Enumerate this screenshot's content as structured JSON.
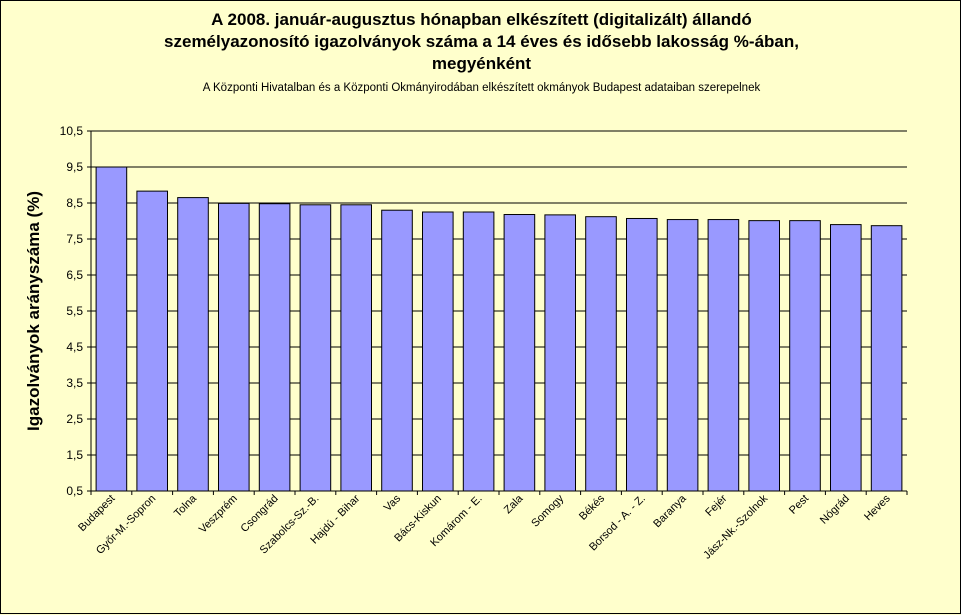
{
  "chart_data": {
    "type": "bar",
    "title_lines": [
      "A 2008. január-augusztus hónapban elkészített (digitalizált) állandó",
      "személyazonosító igazolványok száma a 14 éves és idősebb lakosság %-ában,",
      "megyénként"
    ],
    "subtitle": "A Központi Hivatalban és a Központi Okmányirodában elkészített okmányok Budapest adataiban szerepelnek",
    "ylabel": "Igazolványok arányszáma (%)",
    "xlabel": "",
    "ylim": [
      0.5,
      10.5
    ],
    "yticks": [
      "0,5",
      "1,5",
      "2,5",
      "3,5",
      "4,5",
      "5,5",
      "6,5",
      "7,5",
      "8,5",
      "9,5",
      "10,5"
    ],
    "grid": true,
    "categories": [
      "Budapest",
      "Győr-M.-Sopron",
      "Tolna",
      "Veszprém",
      "Csongrád",
      "Szabolcs-Sz.-B.",
      "Hajdú - Bihar",
      "Vas",
      "Bács-Kiskun",
      "Komárom - E.",
      "Zala",
      "Somogy",
      "Békés",
      "Borsod - A. - Z.",
      "Baranya",
      "Fejér",
      "Jász-Nk.-Szolnok",
      "Pest",
      "Nógrád",
      "Heves"
    ],
    "values": [
      9.5,
      8.83,
      8.65,
      8.49,
      8.48,
      8.45,
      8.45,
      8.3,
      8.25,
      8.25,
      8.18,
      8.17,
      8.12,
      8.07,
      8.04,
      8.04,
      8.01,
      8.01,
      7.9,
      7.87
    ],
    "bar_color": "#9999ff",
    "background_color": "#ffffcc"
  }
}
